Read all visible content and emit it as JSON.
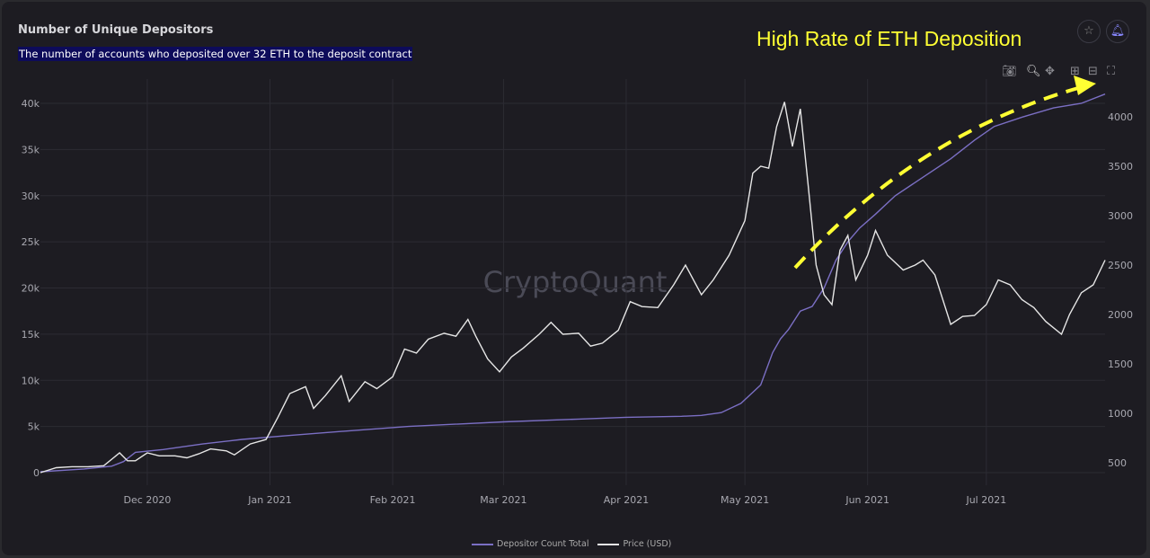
{
  "header": {
    "title": "Number of Unique Depositors",
    "subtitle": "The number of accounts who deposited over 32 ETH to the deposit contract",
    "annotation": "High Rate of ETH Deposition",
    "watermark": "CryptoQuant"
  },
  "icons": {
    "star": "star-icon",
    "bell": "bell-icon",
    "toolbar": [
      "camera-icon",
      "zoom-icon",
      "pan-icon",
      "zoom-in-icon",
      "zoom-out-icon",
      "autoscale-icon"
    ]
  },
  "colors": {
    "depositors": "#7b6fc4",
    "price": "#e6e6e6",
    "annotation": "#ffff33",
    "background": "#1d1c22"
  },
  "chart_data": {
    "type": "line",
    "title": "Number of Unique Depositors",
    "x_range": [
      "2020-11-04",
      "2021-07-31"
    ],
    "x_ticks": [
      {
        "date": "2020-12-01",
        "label": "Dec 2020"
      },
      {
        "date": "2021-01-01",
        "label": "Jan 2021"
      },
      {
        "date": "2021-02-01",
        "label": "Feb 2021"
      },
      {
        "date": "2021-03-01",
        "label": "Mar 2021"
      },
      {
        "date": "2021-04-01",
        "label": "Apr 2021"
      },
      {
        "date": "2021-05-01",
        "label": "May 2021"
      },
      {
        "date": "2021-06-01",
        "label": "Jun 2021"
      },
      {
        "date": "2021-07-01",
        "label": "Jul 2021"
      }
    ],
    "y_left": {
      "range": [
        0,
        40000
      ],
      "ticks": [
        0,
        5000,
        10000,
        15000,
        20000,
        25000,
        30000,
        35000,
        40000
      ],
      "tick_labels": [
        "0",
        "5k",
        "10k",
        "15k",
        "20k",
        "25k",
        "30k",
        "35k",
        "40k"
      ]
    },
    "y_right": {
      "range": [
        500,
        4000
      ],
      "ticks": [
        500,
        1000,
        1500,
        2000,
        2500,
        3000,
        3500,
        4000
      ],
      "tick_labels": [
        "500",
        "1000",
        "1500",
        "2000",
        "2500",
        "3000",
        "3500",
        "4000"
      ]
    },
    "grid": true,
    "legend_position": "bottom",
    "series": [
      {
        "name": "Depositor Count Total",
        "axis": "left",
        "points": [
          [
            "2020-11-04",
            100
          ],
          [
            "2020-11-15",
            400
          ],
          [
            "2020-11-22",
            700
          ],
          [
            "2020-11-25",
            1200
          ],
          [
            "2020-11-28",
            2200
          ],
          [
            "2020-12-05",
            2500
          ],
          [
            "2020-12-15",
            3100
          ],
          [
            "2020-12-25",
            3600
          ],
          [
            "2021-01-05",
            4000
          ],
          [
            "2021-01-20",
            4500
          ],
          [
            "2021-02-05",
            5000
          ],
          [
            "2021-03-01",
            5500
          ],
          [
            "2021-03-20",
            5800
          ],
          [
            "2021-04-01",
            6000
          ],
          [
            "2021-04-15",
            6100
          ],
          [
            "2021-04-20",
            6200
          ],
          [
            "2021-04-25",
            6500
          ],
          [
            "2021-04-30",
            7500
          ],
          [
            "2021-05-03",
            8700
          ],
          [
            "2021-05-05",
            9500
          ],
          [
            "2021-05-08",
            13000
          ],
          [
            "2021-05-10",
            14500
          ],
          [
            "2021-05-12",
            15500
          ],
          [
            "2021-05-15",
            17500
          ],
          [
            "2021-05-18",
            18000
          ],
          [
            "2021-05-21",
            20000
          ],
          [
            "2021-05-24",
            23000
          ],
          [
            "2021-05-27",
            25000
          ],
          [
            "2021-05-30",
            26500
          ],
          [
            "2021-06-03",
            28000
          ],
          [
            "2021-06-08",
            30000
          ],
          [
            "2021-06-15",
            32000
          ],
          [
            "2021-06-22",
            34000
          ],
          [
            "2021-06-28",
            36000
          ],
          [
            "2021-07-03",
            37500
          ],
          [
            "2021-07-10",
            38500
          ],
          [
            "2021-07-18",
            39500
          ],
          [
            "2021-07-25",
            40000
          ],
          [
            "2021-07-31",
            41000
          ]
        ]
      },
      {
        "name": "Price (USD)",
        "axis": "right",
        "points": [
          [
            "2020-11-04",
            400
          ],
          [
            "2020-11-08",
            450
          ],
          [
            "2020-11-12",
            460
          ],
          [
            "2020-11-16",
            460
          ],
          [
            "2020-11-20",
            470
          ],
          [
            "2020-11-24",
            600
          ],
          [
            "2020-11-26",
            520
          ],
          [
            "2020-11-28",
            520
          ],
          [
            "2020-12-01",
            600
          ],
          [
            "2020-12-04",
            570
          ],
          [
            "2020-12-08",
            570
          ],
          [
            "2020-12-11",
            550
          ],
          [
            "2020-12-14",
            590
          ],
          [
            "2020-12-17",
            640
          ],
          [
            "2020-12-21",
            620
          ],
          [
            "2020-12-23",
            580
          ],
          [
            "2020-12-27",
            690
          ],
          [
            "2020-12-31",
            735
          ],
          [
            "2021-01-03",
            960
          ],
          [
            "2021-01-06",
            1200
          ],
          [
            "2021-01-10",
            1270
          ],
          [
            "2021-01-12",
            1050
          ],
          [
            "2021-01-15",
            1180
          ],
          [
            "2021-01-19",
            1380
          ],
          [
            "2021-01-21",
            1120
          ],
          [
            "2021-01-25",
            1320
          ],
          [
            "2021-01-28",
            1250
          ],
          [
            "2021-02-01",
            1370
          ],
          [
            "2021-02-04",
            1650
          ],
          [
            "2021-02-07",
            1610
          ],
          [
            "2021-02-10",
            1750
          ],
          [
            "2021-02-14",
            1810
          ],
          [
            "2021-02-17",
            1780
          ],
          [
            "2021-02-20",
            1950
          ],
          [
            "2021-02-22",
            1780
          ],
          [
            "2021-02-25",
            1550
          ],
          [
            "2021-02-28",
            1420
          ],
          [
            "2021-03-03",
            1570
          ],
          [
            "2021-03-06",
            1660
          ],
          [
            "2021-03-10",
            1800
          ],
          [
            "2021-03-13",
            1920
          ],
          [
            "2021-03-16",
            1800
          ],
          [
            "2021-03-20",
            1810
          ],
          [
            "2021-03-23",
            1680
          ],
          [
            "2021-03-26",
            1710
          ],
          [
            "2021-03-30",
            1840
          ],
          [
            "2021-04-02",
            2130
          ],
          [
            "2021-04-05",
            2080
          ],
          [
            "2021-04-09",
            2070
          ],
          [
            "2021-04-13",
            2300
          ],
          [
            "2021-04-16",
            2500
          ],
          [
            "2021-04-20",
            2200
          ],
          [
            "2021-04-23",
            2350
          ],
          [
            "2021-04-27",
            2600
          ],
          [
            "2021-05-01",
            2950
          ],
          [
            "2021-05-03",
            3430
          ],
          [
            "2021-05-05",
            3500
          ],
          [
            "2021-05-07",
            3480
          ],
          [
            "2021-05-09",
            3900
          ],
          [
            "2021-05-11",
            4150
          ],
          [
            "2021-05-13",
            3700
          ],
          [
            "2021-05-15",
            4080
          ],
          [
            "2021-05-17",
            3300
          ],
          [
            "2021-05-19",
            2500
          ],
          [
            "2021-05-21",
            2200
          ],
          [
            "2021-05-23",
            2100
          ],
          [
            "2021-05-25",
            2650
          ],
          [
            "2021-05-27",
            2800
          ],
          [
            "2021-05-29",
            2350
          ],
          [
            "2021-06-01",
            2600
          ],
          [
            "2021-06-03",
            2850
          ],
          [
            "2021-06-06",
            2600
          ],
          [
            "2021-06-10",
            2450
          ],
          [
            "2021-06-13",
            2500
          ],
          [
            "2021-06-15",
            2550
          ],
          [
            "2021-06-18",
            2400
          ],
          [
            "2021-06-22",
            1900
          ],
          [
            "2021-06-25",
            1980
          ],
          [
            "2021-06-28",
            1990
          ],
          [
            "2021-07-01",
            2100
          ],
          [
            "2021-07-04",
            2350
          ],
          [
            "2021-07-07",
            2300
          ],
          [
            "2021-07-10",
            2150
          ],
          [
            "2021-07-13",
            2070
          ],
          [
            "2021-07-16",
            1930
          ],
          [
            "2021-07-20",
            1800
          ],
          [
            "2021-07-22",
            2000
          ],
          [
            "2021-07-25",
            2220
          ],
          [
            "2021-07-28",
            2300
          ],
          [
            "2021-07-31",
            2550
          ]
        ]
      }
    ]
  }
}
